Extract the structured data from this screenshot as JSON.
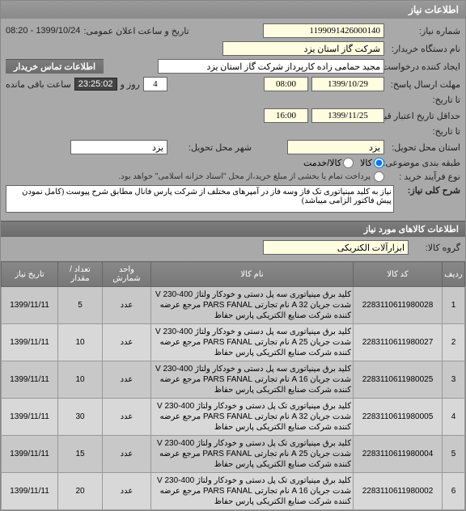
{
  "panel": {
    "title": "اطلاعات نیاز"
  },
  "header": {
    "req_no_label": "شماره نیاز:",
    "req_no": "1199091426000140",
    "announce_label": "تاریخ و ساعت اعلان عمومی:",
    "announce_value": "1399/10/24 - 08:20",
    "buyer_name_label": "نام دستگاه خریدار:",
    "buyer_name": "شرکت گاز استان یزد",
    "creator_label": "ایجاد کننده درخواست:",
    "creator": "مجید حمامی زاده کارپرداز شرکت گاز استان یزد",
    "contact_tab": "اطلاعات تماس خریدار"
  },
  "deadlines": {
    "resp_deadline_label": "مهلت ارسال پاسخ:",
    "resp_date": "1399/10/29",
    "resp_time": "08:00",
    "days_val": "4",
    "days_label": "روز و",
    "timer": "23:25:02",
    "remain_label": "ساعت باقی مانده",
    "until_label": "تا تاریخ:",
    "price_valid_label": "حداقل تاریخ اعتبار قیمت:",
    "price_valid_date": "1399/11/25",
    "price_valid_time": "16:00",
    "until2_label": "تا تاریخ:"
  },
  "delivery": {
    "state_deliv_label": "استان محل تحویل:",
    "state_deliv": "یزد",
    "city_deliv_label": "شهر محل تحویل:",
    "city_deliv": "یزد"
  },
  "budget": {
    "class_label": "طبقه بندی موضوعی:",
    "radio_goods": "کالا",
    "radio_service": "کالا/خدمت",
    "process_label": "نوع فرآیند خرید :",
    "process_note": "پرداخت تمام یا بخشی از مبلغ خرید،از محل \"اسناد خزانه اسلامی\" خواهد بود."
  },
  "main_desc": {
    "label": "شرح کلی نیاز:",
    "text": "نیاز به کلید مینیاتوری تک فاز وسه فاز در آمپرهای مختلف از شرکت پارس فانال مطابق شرح پیوست (کامل نمودن پیش فاکتور الزامی میباشد)"
  },
  "goods_section": {
    "title": "اطلاعات کالاهای مورد نیاز",
    "group_label": "گروه کالا:",
    "group_value": "ابزارآلات الکتریکی"
  },
  "table": {
    "cols": [
      "ردیف",
      "کد کالا",
      "نام کالا",
      "واحد شمارش",
      "تعداد / مقدار",
      "تاریخ نیاز"
    ],
    "rows": [
      {
        "idx": "1",
        "code": "2283110611980028",
        "name": "کلید برق مینیاتوری سه پل دستی و خودکار ولتاژ 400-230 V شدت جریان A 32 نام تجارتی PARS FANAL مرجع عرضه کننده شرکت صنایع الکتریکی پارس حفاظ",
        "unit": "عدد",
        "qty": "5",
        "date": "1399/11/11"
      },
      {
        "idx": "2",
        "code": "2283110611980027",
        "name": "کلید برق مینیاتوری سه پل دستی و خودکار ولتاژ 400-230 V شدت جریان A 25 نام تجارتی PARS FANAL مرجع عرضه کننده شرکت صنایع الکتریکی پارس حفاظ",
        "unit": "عدد",
        "qty": "10",
        "date": "1399/11/11"
      },
      {
        "idx": "3",
        "code": "2283110611980025",
        "name": "کلید برق مینیاتوری سه پل دستی و خودکار ولتاژ 400-230 V شدت جریان A 16 نام تجارتی PARS FANAL مرجع عرضه کننده شرکت صنایع الکتریکی پارس حفاظ",
        "unit": "عدد",
        "qty": "10",
        "date": "1399/11/11"
      },
      {
        "idx": "4",
        "code": "2283110611980005",
        "name": "کلید برق مینیاتوری تک پل دستی و خودکار ولتاژ 400-230 V شدت جریان A 32 نام تجارتی PARS FANAL مرجع عرضه کننده شرکت صنایع الکتریکی پارس حفاظ",
        "unit": "عدد",
        "qty": "30",
        "date": "1399/11/11"
      },
      {
        "idx": "5",
        "code": "2283110611980004",
        "name": "کلید برق مینیاتوری تک پل دستی و خودکار ولتاژ 400-230 V شدت جریان 25 A نام تجارتی PARS FANAL مرجع عرضه کننده شرکت صنایع الکتریکی پارس حفاظ",
        "unit": "عدد",
        "qty": "15",
        "date": "1399/11/11"
      },
      {
        "idx": "6",
        "code": "2283110611980002",
        "name": "کلید برق مینیاتوری تک پل دستی و خودکار ولتاژ 400-230 V شدت جریان A 16 نام تجارتی PARS FANAL مرجع عرضه کننده شرکت صنایع الکتریکی پارس حفاظ",
        "unit": "عدد",
        "qty": "20",
        "date": "1399/11/11"
      }
    ]
  }
}
